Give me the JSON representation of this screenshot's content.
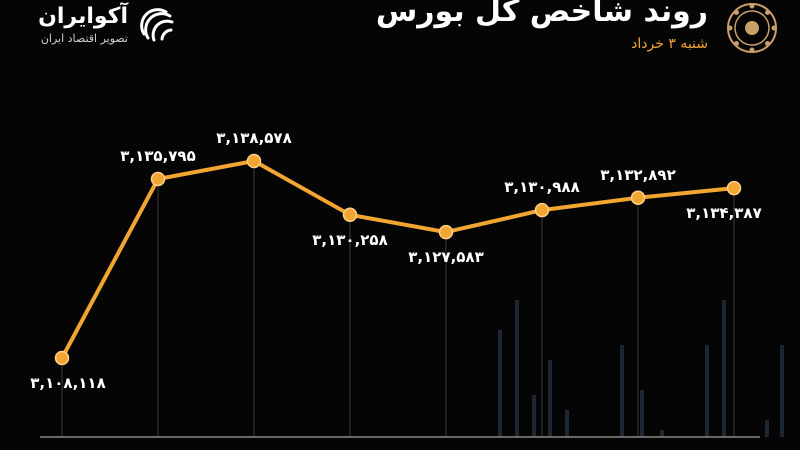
{
  "brand": {
    "name": "آکوایران",
    "tagline": "تصویر اقتصاد ایران"
  },
  "header": {
    "title": "روند شاخص کل بورس",
    "subtitle": "شنبه ۳ خرداد"
  },
  "colors": {
    "line": "#f2a531",
    "point": "#f2a531",
    "background": "#050505",
    "grid": "#3a3a3a"
  },
  "chart_data": {
    "type": "line",
    "title": "روند شاخص کل بورس",
    "subtitle": "شنبه ۳ خرداد",
    "x": [
      1,
      2,
      3,
      4,
      5,
      6,
      7,
      8
    ],
    "values": [
      3108118,
      3135795,
      3138578,
      3130258,
      3127583,
      3130988,
      3132892,
      3134387
    ],
    "labels": [
      "۳,۱۰۸,۱۱۸",
      "۳,۱۳۵,۷۹۵",
      "۳,۱۳۸,۵۷۸",
      "۳,۱۳۰,۲۵۸",
      "۳,۱۲۷,۵۸۳",
      "۳,۱۳۰,۹۸۸",
      "۳,۱۳۲,۸۹۲",
      "۳,۱۳۴,۳۸۷"
    ],
    "label_positions": [
      "below",
      "above",
      "above",
      "below",
      "below",
      "above",
      "above",
      "below"
    ],
    "ylim": [
      3108118,
      3138578
    ],
    "grid": "vertical",
    "xlabel": "",
    "ylabel": ""
  }
}
